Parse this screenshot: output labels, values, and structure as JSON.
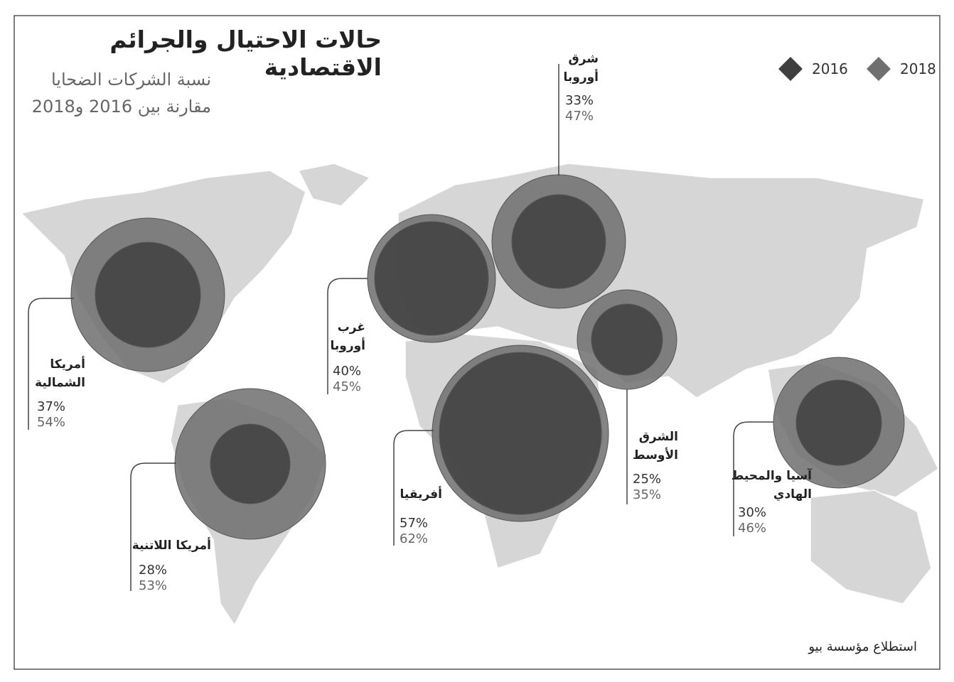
{
  "chart_data": {
    "type": "bubble-map",
    "title": "حالات الاحتيال والجرائم الاقتصادية",
    "subtitle": [
      "نسبة الشركات الضحايا",
      "مقارنة بين 2016 و2018"
    ],
    "source": "استطلاع مؤسسة بيو",
    "categories": [
      "أمريكا الشمالية",
      "أمريكا اللاتنية",
      "غرب أوروبا",
      "شرق أوروبا",
      "أفريقيا",
      "الشرق الأوسط",
      "آسيا والمحيط الهادي"
    ],
    "series": [
      {
        "name": "2016",
        "color": "#3f3f3f",
        "values": [
          37,
          28,
          40,
          33,
          57,
          25,
          30
        ],
        "value_labels": [
          "37%",
          "28%",
          "40%",
          "33%",
          "57%",
          "25%",
          "30%"
        ]
      },
      {
        "name": "2018",
        "color": "#6f6f6f",
        "values": [
          54,
          53,
          45,
          47,
          62,
          35,
          46
        ],
        "value_labels": [
          "54%",
          "53%",
          "45%",
          "47%",
          "62%",
          "35%",
          "46%"
        ]
      }
    ]
  }
}
